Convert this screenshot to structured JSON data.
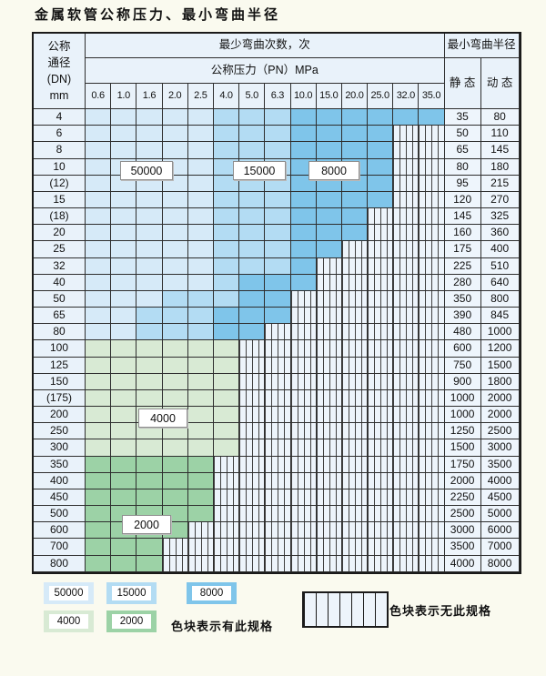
{
  "title": "金属软管公称压力、最小弯曲半径",
  "table": {
    "header": {
      "dn_lines": [
        "公称",
        "通径",
        "(DN)",
        "mm"
      ],
      "bend_cycles": "最少弯曲次数，次",
      "pressure": "公称压力（PN）MPa",
      "bend_radius": "最小弯曲半径",
      "static": "静 态",
      "dynamic": "动 态"
    },
    "pressure_ticks": [
      "0.6",
      "1.0",
      "1.6",
      "2.0",
      "2.5",
      "4.0",
      "5.0",
      "6.3",
      "10.0",
      "15.0",
      "20.0",
      "25.0",
      "32.0",
      "35.0"
    ],
    "tone_legend_note": "L=50000次 M=15000次 D=8000次 G=4000次 g=2000次, 其余列为无此规格(竖线填充)",
    "rows": [
      {
        "dn": "4",
        "tones": "L5 M3 D6",
        "static": "35",
        "dynamic": "80"
      },
      {
        "dn": "6",
        "tones": "L5 M3 D4",
        "static": "50",
        "dynamic": "110"
      },
      {
        "dn": "8",
        "tones": "L5 M3 D4",
        "static": "65",
        "dynamic": "145"
      },
      {
        "dn": "10",
        "tones": "L5 M3 D4",
        "static": "80",
        "dynamic": "180"
      },
      {
        "dn": "(12)",
        "tones": "L5 M3 D4",
        "static": "95",
        "dynamic": "215"
      },
      {
        "dn": "15",
        "tones": "L5 M3 D4",
        "static": "120",
        "dynamic": "270"
      },
      {
        "dn": "(18)",
        "tones": "L5 M3 D3",
        "static": "145",
        "dynamic": "325"
      },
      {
        "dn": "20",
        "tones": "L5 M3 D3",
        "static": "160",
        "dynamic": "360"
      },
      {
        "dn": "25",
        "tones": "L5 M3 D2",
        "static": "175",
        "dynamic": "400"
      },
      {
        "dn": "32",
        "tones": "L5 M3 D1",
        "static": "225",
        "dynamic": "510"
      },
      {
        "dn": "40",
        "tones": "L5 M1 D3",
        "static": "280",
        "dynamic": "640"
      },
      {
        "dn": "50",
        "tones": "L3 M3 D2",
        "static": "350",
        "dynamic": "800"
      },
      {
        "dn": "65",
        "tones": "L2 M3 D3",
        "static": "390",
        "dynamic": "845"
      },
      {
        "dn": "80",
        "tones": "L2 M3 D2",
        "static": "480",
        "dynamic": "1000"
      },
      {
        "dn": "100",
        "tones": "G6",
        "static": "600",
        "dynamic": "1200"
      },
      {
        "dn": "125",
        "tones": "G6",
        "static": "750",
        "dynamic": "1500"
      },
      {
        "dn": "150",
        "tones": "G6",
        "static": "900",
        "dynamic": "1800"
      },
      {
        "dn": "(175)",
        "tones": "G6",
        "static": "1000",
        "dynamic": "2000"
      },
      {
        "dn": "200",
        "tones": "G6",
        "static": "1000",
        "dynamic": "2000"
      },
      {
        "dn": "250",
        "tones": "G6",
        "static": "1250",
        "dynamic": "2500"
      },
      {
        "dn": "300",
        "tones": "G6",
        "static": "1500",
        "dynamic": "3000"
      },
      {
        "dn": "350",
        "tones": "g5",
        "static": "1750",
        "dynamic": "3500"
      },
      {
        "dn": "400",
        "tones": "g5",
        "static": "2000",
        "dynamic": "4000"
      },
      {
        "dn": "450",
        "tones": "g5",
        "static": "2250",
        "dynamic": "4500"
      },
      {
        "dn": "500",
        "tones": "g5",
        "static": "2500",
        "dynamic": "5000"
      },
      {
        "dn": "600",
        "tones": "g4",
        "static": "3000",
        "dynamic": "6000"
      },
      {
        "dn": "700",
        "tones": "g3",
        "static": "3500",
        "dynamic": "7000"
      },
      {
        "dn": "800",
        "tones": "g3",
        "static": "4000",
        "dynamic": "8000"
      }
    ]
  },
  "region_labels": {
    "b50000": "50000",
    "b15000": "15000",
    "b8000": "8000",
    "g4000": "4000",
    "g2000": "2000"
  },
  "legend": {
    "blue": [
      {
        "label": "50000",
        "tone": "L"
      },
      {
        "label": "15000",
        "tone": "M"
      },
      {
        "label": "8000",
        "tone": "D"
      }
    ],
    "green": [
      {
        "label": "4000",
        "tone": "G"
      },
      {
        "label": "2000",
        "tone": "g"
      }
    ],
    "has_spec": "色块表示有此规格",
    "no_spec": "色块表示无此规格"
  },
  "colors": {
    "blue_light": "#d6eaf8",
    "blue_mid": "#b3dcf3",
    "blue_dark": "#7fc5ea",
    "green_light": "#d8ead4",
    "green_dark": "#9cd2a6",
    "hatch_bg": "#edf4fb",
    "cell_bg": "#e9f2fa",
    "page_bg": "#fafaef"
  }
}
